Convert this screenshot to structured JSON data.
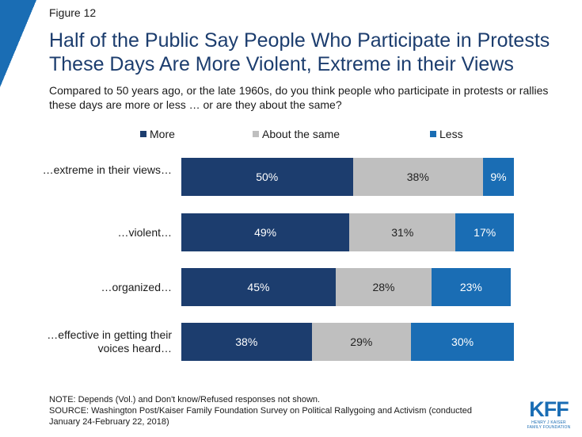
{
  "figure_label": "Figure 12",
  "chart_data": {
    "type": "bar",
    "orientation": "horizontal",
    "stacked": true,
    "title": "Half of the Public Say People Who Participate in Protests These Days Are More Violent, Extreme in their Views",
    "subtitle": "Compared to 50 years ago, or the late 1960s, do you think people who participate in protests or rallies these days are more or less … or are they about the same?",
    "categories": [
      "…extreme in their views…",
      "…violent…",
      "…organized…",
      "…effective in getting their voices heard…"
    ],
    "series": [
      {
        "name": "More",
        "color": "#1c3d6e",
        "values": [
          50,
          49,
          45,
          38
        ]
      },
      {
        "name": "About the same",
        "color": "#bfbfbf",
        "values": [
          38,
          31,
          28,
          29
        ]
      },
      {
        "name": "Less",
        "color": "#1a6db4",
        "values": [
          9,
          17,
          23,
          30
        ]
      }
    ],
    "value_suffix": "%",
    "xlim": [
      0,
      100
    ],
    "legend_position": "top",
    "grid": false
  },
  "notes": {
    "note": "NOTE: Depends (Vol.) and Don't know/Refused responses not shown.",
    "source": "SOURCE: Washington Post/Kaiser Family Foundation Survey on Political Rallygoing and Activism (conducted January 24-February 22, 2018)"
  },
  "logo": {
    "main": "KFF",
    "sub_line1": "HENRY J KAISER",
    "sub_line2": "FAMILY FOUNDATION"
  },
  "colors": {
    "accent": "#1a6db4",
    "title": "#1c3d6e"
  }
}
